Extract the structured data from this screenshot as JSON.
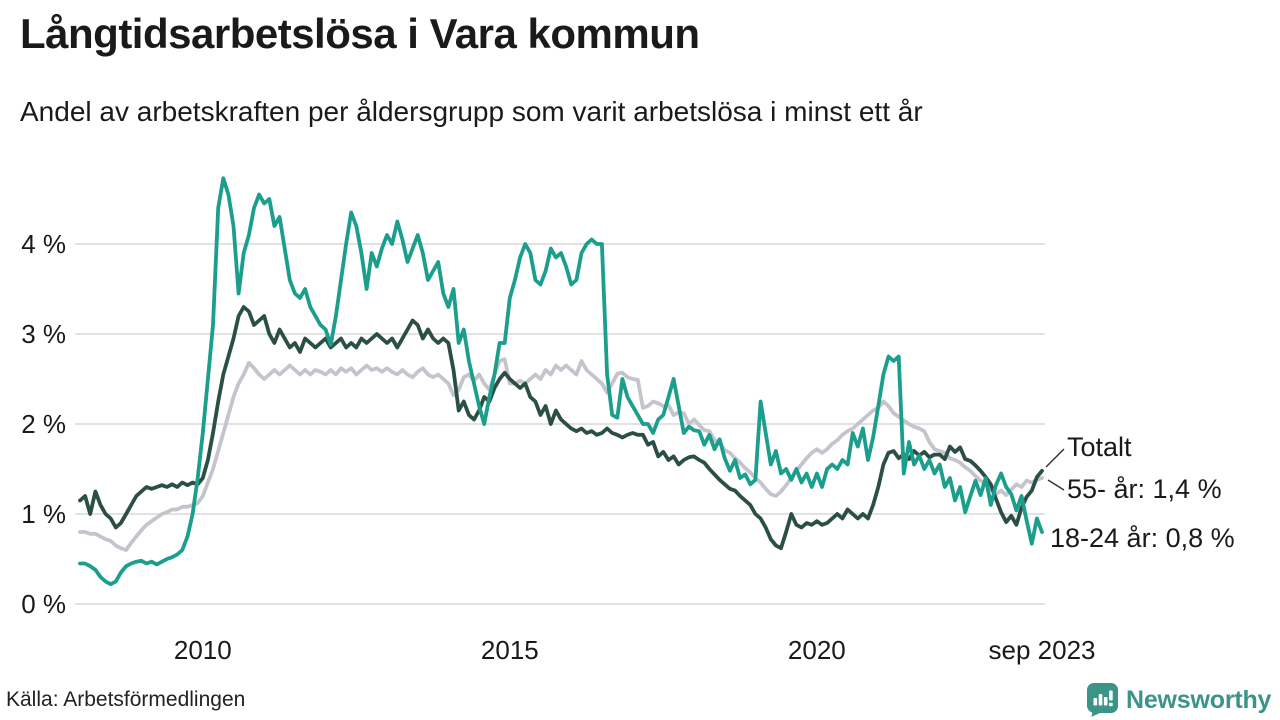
{
  "header": {
    "title": "Långtidsarbetslösa i Vara kommun",
    "subtitle": "Andel av arbetskraften per åldersgrupp som varit arbetslösa i minst ett år"
  },
  "chart_data": {
    "type": "line",
    "title": "Långtidsarbetslösa i Vara kommun",
    "unit": "% av arbetskraften",
    "frequency": "monthly",
    "x_start": "2008-01",
    "x_end": "2023-09",
    "ylim": [
      0,
      4.9
    ],
    "grid": "horizontal",
    "y_ticks": [
      {
        "label": "0 %",
        "value": 0
      },
      {
        "label": "1 %",
        "value": 1
      },
      {
        "label": "2 %",
        "value": 2
      },
      {
        "label": "3 %",
        "value": 3
      },
      {
        "label": "4 %",
        "value": 4
      }
    ],
    "x_ticks": [
      {
        "label": "2010",
        "month_index": 24
      },
      {
        "label": "2015",
        "month_index": 84
      },
      {
        "label": "2020",
        "month_index": 144
      },
      {
        "label": "sep 2023",
        "month_index": 188
      }
    ],
    "series": [
      {
        "name": "55- år",
        "color": "#c5c4cd",
        "values": [
          0.8,
          0.8,
          0.78,
          0.78,
          0.75,
          0.72,
          0.7,
          0.65,
          0.62,
          0.6,
          0.68,
          0.75,
          0.82,
          0.88,
          0.92,
          0.96,
          1.0,
          1.02,
          1.05,
          1.05,
          1.08,
          1.08,
          1.1,
          1.12,
          1.2,
          1.35,
          1.5,
          1.7,
          1.9,
          2.1,
          2.3,
          2.45,
          2.55,
          2.68,
          2.62,
          2.55,
          2.5,
          2.55,
          2.6,
          2.55,
          2.6,
          2.65,
          2.6,
          2.55,
          2.6,
          2.55,
          2.6,
          2.58,
          2.55,
          2.6,
          2.55,
          2.62,
          2.58,
          2.62,
          2.55,
          2.6,
          2.65,
          2.6,
          2.62,
          2.58,
          2.62,
          2.58,
          2.55,
          2.6,
          2.55,
          2.52,
          2.58,
          2.62,
          2.55,
          2.52,
          2.55,
          2.5,
          2.45,
          2.32,
          2.38,
          2.52,
          2.55,
          2.48,
          2.55,
          2.45,
          2.38,
          2.55,
          2.7,
          2.72,
          2.45,
          2.45,
          2.48,
          2.45,
          2.5,
          2.55,
          2.5,
          2.6,
          2.55,
          2.65,
          2.6,
          2.65,
          2.6,
          2.55,
          2.7,
          2.6,
          2.55,
          2.5,
          2.45,
          2.35,
          2.45,
          2.56,
          2.57,
          2.52,
          2.5,
          2.49,
          2.18,
          2.2,
          2.25,
          2.23,
          2.2,
          2.21,
          2.1,
          2.13,
          2.12,
          2.0,
          2.05,
          1.99,
          1.93,
          1.92,
          1.82,
          1.79,
          1.71,
          1.68,
          1.62,
          1.57,
          1.51,
          1.46,
          1.4,
          1.35,
          1.28,
          1.22,
          1.2,
          1.25,
          1.32,
          1.4,
          1.48,
          1.55,
          1.62,
          1.68,
          1.72,
          1.68,
          1.72,
          1.78,
          1.82,
          1.88,
          1.92,
          1.95,
          2.0,
          2.05,
          2.1,
          2.15,
          2.18,
          2.25,
          2.2,
          2.12,
          2.08,
          2.04,
          2.0,
          1.97,
          1.95,
          1.92,
          1.8,
          1.72,
          1.7,
          1.68,
          1.62,
          1.6,
          1.57,
          1.52,
          1.48,
          1.42,
          1.37,
          1.33,
          1.27,
          1.22,
          1.26,
          1.21,
          1.27,
          1.33,
          1.3,
          1.37,
          1.35,
          1.38,
          1.4
        ]
      },
      {
        "name": "Totalt",
        "color": "#2b4f44",
        "values": [
          1.15,
          1.2,
          1.0,
          1.25,
          1.1,
          1.0,
          0.95,
          0.85,
          0.9,
          1.0,
          1.1,
          1.2,
          1.25,
          1.3,
          1.28,
          1.3,
          1.32,
          1.3,
          1.33,
          1.3,
          1.35,
          1.32,
          1.35,
          1.33,
          1.4,
          1.6,
          1.9,
          2.25,
          2.55,
          2.75,
          2.95,
          3.2,
          3.3,
          3.25,
          3.1,
          3.15,
          3.2,
          3.0,
          2.9,
          3.05,
          2.95,
          2.85,
          2.9,
          2.8,
          2.95,
          2.9,
          2.85,
          2.9,
          2.95,
          2.85,
          2.9,
          2.95,
          2.85,
          2.9,
          2.85,
          2.95,
          2.9,
          2.95,
          3.0,
          2.95,
          2.9,
          2.95,
          2.85,
          2.95,
          3.05,
          3.15,
          3.1,
          2.95,
          3.05,
          2.95,
          2.9,
          2.95,
          2.9,
          2.6,
          2.15,
          2.25,
          2.1,
          2.05,
          2.15,
          2.3,
          2.25,
          2.4,
          2.5,
          2.57,
          2.5,
          2.45,
          2.4,
          2.45,
          2.3,
          2.25,
          2.1,
          2.2,
          2.0,
          2.15,
          2.05,
          2.0,
          1.95,
          1.92,
          1.95,
          1.9,
          1.92,
          1.88,
          1.9,
          1.95,
          1.9,
          1.88,
          1.85,
          1.88,
          1.9,
          1.88,
          1.88,
          1.77,
          1.8,
          1.64,
          1.69,
          1.6,
          1.64,
          1.55,
          1.6,
          1.63,
          1.64,
          1.6,
          1.57,
          1.5,
          1.44,
          1.38,
          1.33,
          1.28,
          1.26,
          1.2,
          1.15,
          1.1,
          1.0,
          0.95,
          0.85,
          0.72,
          0.65,
          0.62,
          0.8,
          1.0,
          0.88,
          0.85,
          0.9,
          0.88,
          0.92,
          0.88,
          0.9,
          0.95,
          1.0,
          0.95,
          1.05,
          1.0,
          0.95,
          1.0,
          0.95,
          1.1,
          1.3,
          1.55,
          1.68,
          1.7,
          1.62,
          1.66,
          1.61,
          1.7,
          1.65,
          1.69,
          1.63,
          1.66,
          1.66,
          1.61,
          1.75,
          1.69,
          1.74,
          1.61,
          1.59,
          1.54,
          1.48,
          1.41,
          1.33,
          1.17,
          1.02,
          0.91,
          0.98,
          0.88,
          1.07,
          1.19,
          1.26,
          1.41,
          1.48
        ]
      },
      {
        "name": "18-24 år",
        "color": "#1b9e8c",
        "values": [
          0.45,
          0.45,
          0.42,
          0.38,
          0.3,
          0.25,
          0.22,
          0.25,
          0.35,
          0.42,
          0.45,
          0.47,
          0.48,
          0.45,
          0.47,
          0.44,
          0.47,
          0.5,
          0.52,
          0.55,
          0.6,
          0.75,
          1.0,
          1.4,
          1.9,
          2.5,
          3.1,
          4.4,
          4.73,
          4.55,
          4.2,
          3.45,
          3.9,
          4.1,
          4.4,
          4.55,
          4.45,
          4.5,
          4.2,
          4.3,
          3.95,
          3.6,
          3.45,
          3.4,
          3.5,
          3.3,
          3.2,
          3.1,
          3.05,
          2.88,
          3.2,
          3.6,
          4.0,
          4.35,
          4.2,
          3.9,
          3.5,
          3.9,
          3.75,
          3.95,
          4.1,
          4.0,
          4.25,
          4.05,
          3.8,
          3.95,
          4.1,
          3.9,
          3.6,
          3.7,
          3.8,
          3.45,
          3.3,
          3.5,
          2.9,
          3.05,
          2.7,
          2.45,
          2.2,
          2.0,
          2.3,
          2.55,
          2.9,
          2.9,
          3.4,
          3.6,
          3.85,
          4.0,
          3.9,
          3.6,
          3.55,
          3.7,
          3.95,
          3.85,
          3.9,
          3.75,
          3.55,
          3.6,
          3.9,
          4.0,
          4.05,
          4.0,
          4.0,
          2.55,
          2.1,
          2.07,
          2.5,
          2.3,
          2.2,
          2.1,
          2.0,
          2.0,
          1.9,
          2.05,
          2.1,
          2.3,
          2.5,
          2.2,
          1.9,
          1.97,
          1.93,
          1.92,
          1.77,
          1.88,
          1.72,
          1.83,
          1.62,
          1.48,
          1.6,
          1.4,
          1.44,
          1.33,
          1.38,
          2.25,
          1.9,
          1.55,
          1.7,
          1.45,
          1.5,
          1.38,
          1.5,
          1.35,
          1.45,
          1.3,
          1.45,
          1.3,
          1.5,
          1.55,
          1.5,
          1.6,
          1.55,
          1.9,
          1.75,
          1.95,
          1.6,
          1.85,
          2.2,
          2.55,
          2.75,
          2.7,
          2.75,
          1.45,
          1.8,
          1.55,
          1.65,
          1.5,
          1.6,
          1.45,
          1.55,
          1.3,
          1.4,
          1.15,
          1.3,
          1.02,
          1.2,
          1.37,
          1.21,
          1.4,
          1.1,
          1.32,
          1.45,
          1.3,
          1.22,
          1.04,
          1.2,
          0.93,
          0.67,
          0.95,
          0.8
        ]
      }
    ],
    "annotations": {
      "totalt": "Totalt",
      "older": "55- år: 1,4 %",
      "youth": "18-24 år: 0,8 %"
    },
    "legend_position": "right-of-line-ends"
  },
  "footer": {
    "source": "Källa: Arbetsförmedlingen",
    "brand": "Newsworthy"
  },
  "colors": {
    "accent_teal": "#1b9e8c",
    "dark_green": "#2b4f44",
    "light_gray": "#c5c4cd",
    "grid": "#e2e2e2",
    "brand_teal": "#3b9488"
  }
}
